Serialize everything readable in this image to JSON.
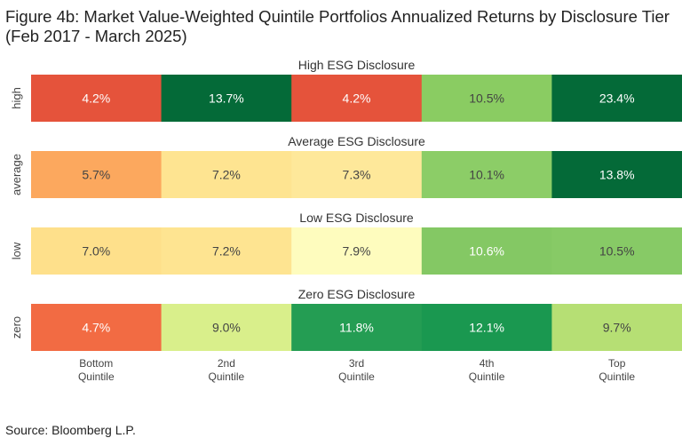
{
  "title_line1": "Figure 4b: Market Value-Weighted Quintile Portfolios Annualized Returns by Disclosure Tier",
  "title_line2": "(Feb 2017 - March 2025)",
  "source": "Source: Bloomberg L.P.",
  "chart_data": {
    "type": "heatmap",
    "title": "Figure 4b: Market Value-Weighted Quintile Portfolios Annualized Returns by Disclosure Tier (Feb 2017 - March 2025)",
    "categories": [
      "Bottom Quintile",
      "2nd Quintile",
      "3rd Quintile",
      "4th Quintile",
      "Top Quintile"
    ],
    "category_lines": [
      [
        "Bottom",
        "Quintile"
      ],
      [
        "2nd",
        "Quintile"
      ],
      [
        "3rd",
        "Quintile"
      ],
      [
        "4th",
        "Quintile"
      ],
      [
        "Top",
        "Quintile"
      ]
    ],
    "panels": [
      {
        "row_label": "high",
        "panel_title": "High ESG Disclosure",
        "values": [
          4.2,
          13.7,
          4.2,
          10.5,
          23.4
        ],
        "labels": [
          "4.2%",
          "13.7%",
          "4.2%",
          "10.5%",
          "23.4%"
        ],
        "colors": [
          "#e5533b",
          "#046a38",
          "#e5533b",
          "#8acc62",
          "#046a38"
        ]
      },
      {
        "row_label": "average",
        "panel_title": "Average ESG Disclosure",
        "values": [
          5.7,
          7.2,
          7.3,
          10.1,
          13.8
        ],
        "labels": [
          "5.7%",
          "7.2%",
          "7.3%",
          "10.1%",
          "13.8%"
        ],
        "colors": [
          "#fca85e",
          "#fee491",
          "#fee89a",
          "#8ccd67",
          "#046a38"
        ]
      },
      {
        "row_label": "low",
        "panel_title": "Low ESG Disclosure",
        "values": [
          7.0,
          7.2,
          7.9,
          10.6,
          10.5
        ],
        "labels": [
          "7.0%",
          "7.2%",
          "7.9%",
          "10.6%",
          "10.5%"
        ],
        "colors": [
          "#fee08b",
          "#fee491",
          "#fefcbe",
          "#84c864",
          "#87ca66"
        ]
      },
      {
        "row_label": "zero",
        "panel_title": "Zero ESG Disclosure",
        "values": [
          4.7,
          9.0,
          11.8,
          12.1,
          9.7
        ],
        "labels": [
          "4.7%",
          "9.0%",
          "11.8%",
          "12.1%",
          "9.7%"
        ],
        "colors": [
          "#f26b43",
          "#d9ef8b",
          "#249d53",
          "#1a9850",
          "#b6df74"
        ]
      }
    ],
    "value_format": "percent",
    "legend": "none",
    "grid": false
  }
}
